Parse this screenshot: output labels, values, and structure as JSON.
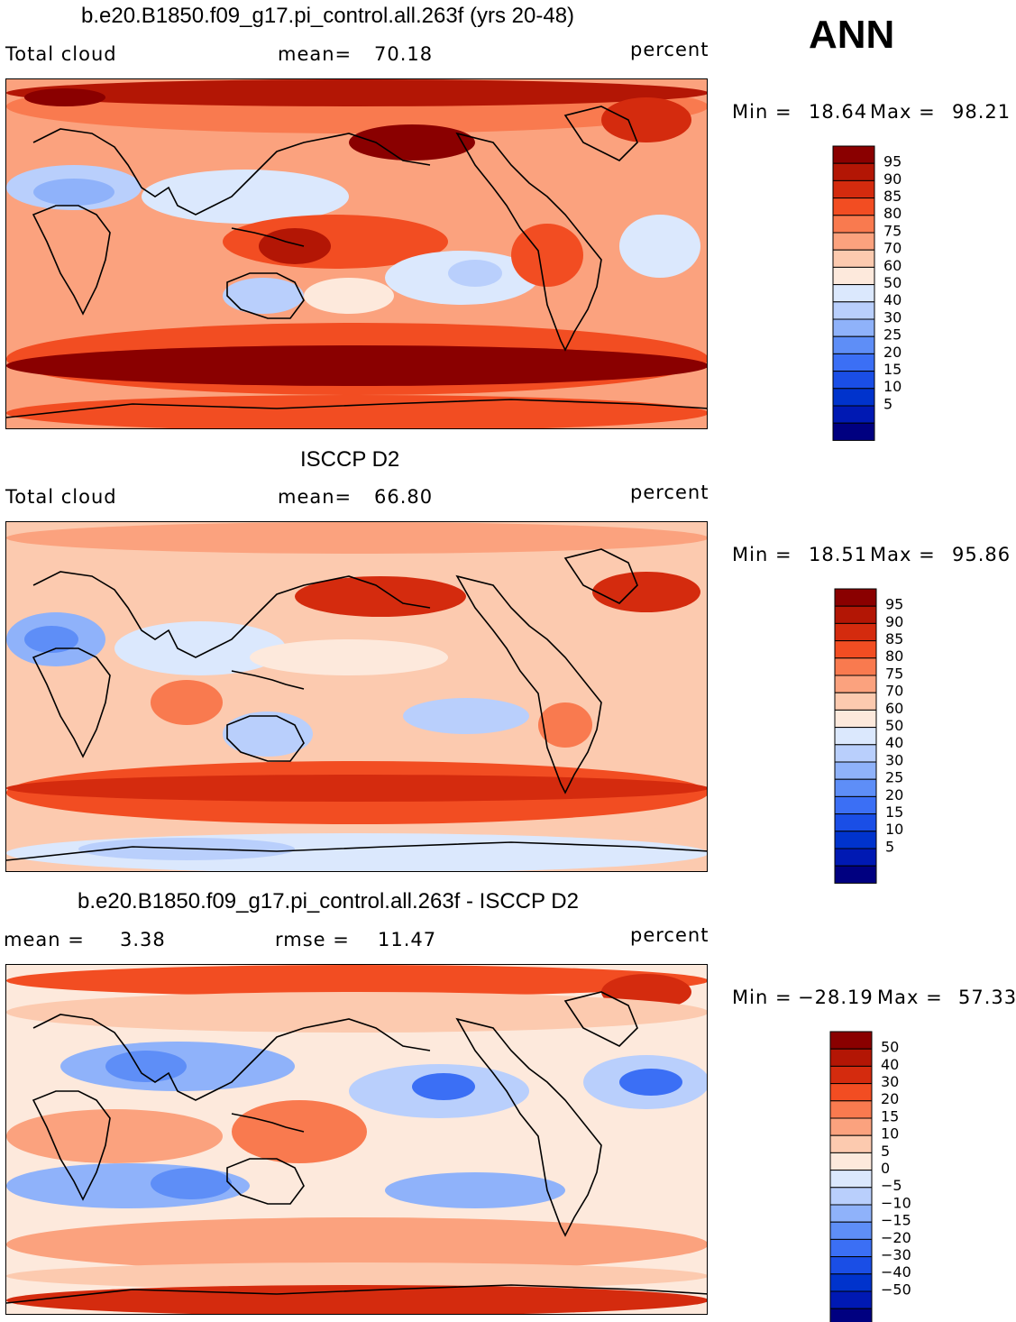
{
  "annotation": "ANN",
  "units": "percent",
  "colors": {
    "abs_levels": [
      "#000080",
      "#0019b3",
      "#0033cc",
      "#1a4ee6",
      "#3b6ff5",
      "#5e8ef7",
      "#8fb2fa",
      "#b9cffc",
      "#dbe8fd",
      "#fde9dc",
      "#fccaaf",
      "#fba27e",
      "#f97a4f",
      "#f24d22",
      "#d42b0e",
      "#b31605",
      "#8a0000"
    ],
    "diff_levels": [
      "#000080",
      "#0019b3",
      "#0033cc",
      "#1a4ee6",
      "#3b6ff5",
      "#5e8ef7",
      "#8fb2fa",
      "#b9cffc",
      "#dbe8fd",
      "#fde9dc",
      "#fccaaf",
      "#fba27e",
      "#f97a4f",
      "#f24d22",
      "#d42b0e",
      "#b31605",
      "#8a0000"
    ]
  },
  "chart_data": [
    {
      "type": "heatmap",
      "title": "b.e20.B1850.f09_g17.pi_control.all.263f (yrs 20-48)",
      "variable": "Total cloud",
      "mean_label": "mean=",
      "mean": "70.18",
      "units": "percent",
      "min_label": "Min  =",
      "min": "18.64",
      "max_label": "Max  =",
      "max": "98.21",
      "colorbar_labels": [
        "95",
        "90",
        "85",
        "80",
        "75",
        "70",
        "60",
        "50",
        "40",
        "30",
        "25",
        "20",
        "15",
        "10",
        "5"
      ]
    },
    {
      "type": "heatmap",
      "title": "ISCCP D2",
      "variable": "Total cloud",
      "mean_label": "mean=",
      "mean": "66.80",
      "units": "percent",
      "min_label": "Min  =",
      "min": "18.51",
      "max_label": "Max  =",
      "max": "95.86",
      "colorbar_labels": [
        "95",
        "90",
        "85",
        "80",
        "75",
        "70",
        "60",
        "50",
        "40",
        "30",
        "25",
        "20",
        "15",
        "10",
        "5"
      ]
    },
    {
      "type": "heatmap",
      "title": "b.e20.B1850.f09_g17.pi_control.all.263f - ISCCP D2",
      "mean_label": "mean  =",
      "mean": "3.38",
      "rmse_label": "rmse  =",
      "rmse": "11.47",
      "units": "percent",
      "min_label": "Min  =",
      "min": "−28.19",
      "max_label": "Max  =",
      "max": "57.33",
      "colorbar_labels": [
        "50",
        "40",
        "30",
        "20",
        "15",
        "10",
        "5",
        "0",
        "−5",
        "−10",
        "−15",
        "−20",
        "−30",
        "−40",
        "−50"
      ]
    }
  ]
}
